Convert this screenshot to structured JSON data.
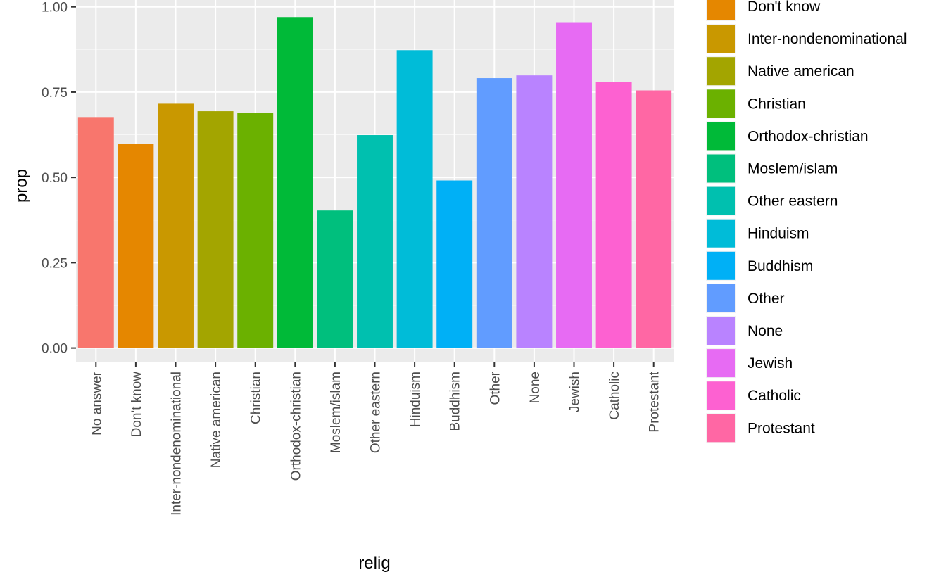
{
  "chart_data": {
    "type": "bar",
    "xlabel": "relig",
    "ylabel": "prop",
    "ylim": [
      -0.04,
      1.02
    ],
    "yticks": [
      0.0,
      0.25,
      0.5,
      0.75,
      1.0
    ],
    "ytick_labels": [
      "0.00",
      "0.25",
      "0.50",
      "0.75",
      "1.00"
    ],
    "grid": true,
    "legend_position": "right",
    "categories": [
      "No answer",
      "Don't know",
      "Inter-nondenominational",
      "Native american",
      "Christian",
      "Orthodox-christian",
      "Moslem/islam",
      "Other eastern",
      "Hinduism",
      "Buddhism",
      "Other",
      "None",
      "Jewish",
      "Catholic",
      "Protestant"
    ],
    "values": [
      0.677,
      0.599,
      0.716,
      0.694,
      0.688,
      0.97,
      0.403,
      0.624,
      0.873,
      0.491,
      0.791,
      0.799,
      0.955,
      0.78,
      0.755
    ],
    "colors": [
      "#F8766D",
      "#E58700",
      "#C99800",
      "#A3A500",
      "#6BB100",
      "#00BA38",
      "#00BF7D",
      "#00C0AF",
      "#00BCD8",
      "#00B0F6",
      "#619CFF",
      "#B983FF",
      "#E76BF3",
      "#FD61D1",
      "#FF67A4"
    ],
    "legend_entries": [
      "Don't know",
      "Inter-nondenominational",
      "Native american",
      "Christian",
      "Orthodox-christian",
      "Moslem/islam",
      "Other eastern",
      "Hinduism",
      "Buddhism",
      "Other",
      "None",
      "Jewish",
      "Catholic",
      "Protestant"
    ],
    "legend_colors": [
      "#E58700",
      "#C99800",
      "#A3A500",
      "#6BB100",
      "#00BA38",
      "#00BF7D",
      "#00C0AF",
      "#00BCD8",
      "#00B0F6",
      "#619CFF",
      "#B983FF",
      "#E76BF3",
      "#FD61D1",
      "#FF67A4"
    ]
  }
}
